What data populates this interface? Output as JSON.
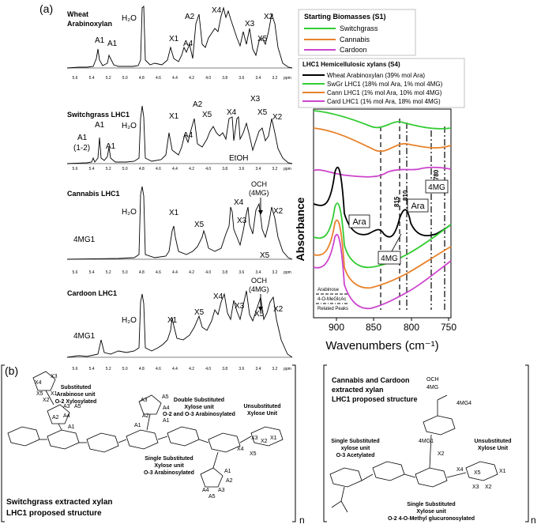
{
  "panel_a": {
    "label": "(a)",
    "nmr": {
      "ppm_unit": "ppm",
      "ticks": [
        "5.6",
        "5.4",
        "5.2",
        "5.0",
        "4.8",
        "4.6",
        "4.4",
        "4.2",
        "4.0",
        "3.8",
        "3.6",
        "3.4",
        "3.2"
      ],
      "spectra": [
        {
          "title_line1": "Wheat",
          "title_line2": "Arabinoxylan",
          "labels": [
            "A1",
            "A1",
            "H₂O",
            "X1",
            "A4",
            "A2",
            "X4",
            "X3",
            "X5",
            "X2"
          ]
        },
        {
          "title_line1": "Switchgrass LHC1",
          "title_line2": "",
          "labels": [
            "A1",
            "A1",
            "(1-2)",
            "A1",
            "H₂O",
            "X1",
            "A4",
            "A2",
            "X5",
            "X4",
            "X3",
            "X5",
            "X2",
            "EtOH"
          ]
        },
        {
          "title_line1": "Cannabis LHC1",
          "title_line2": "",
          "labels": [
            "H₂O",
            "X1",
            "X5",
            "X4",
            "OCH",
            "(4MG)",
            "X3",
            "X2",
            "X5",
            "4MG1"
          ]
        },
        {
          "title_line1": "Cardoon LHC1",
          "title_line2": "",
          "labels": [
            "H₂O",
            "X1",
            "X5",
            "X4",
            "X3",
            "OCH",
            "(4MG)",
            "X5",
            "X2",
            "4MG1"
          ]
        }
      ]
    },
    "ftir": {
      "legend_s1_title": "Starting Biomasses (S1)",
      "legend_s1": [
        {
          "label": "Switchgrass",
          "color": "#33cc33"
        },
        {
          "label": "Cannabis",
          "color": "#e8822a"
        },
        {
          "label": "Cardoon",
          "color": "#cc44cc"
        }
      ],
      "legend_s4_title": "LHC1 Hemicellulosic xylans (S4)",
      "legend_s4": [
        {
          "label": "Wheat Arabinoxylan (39% mol Ara)",
          "color": "#000000"
        },
        {
          "label": "SwGr LHC1 (18% mol Ara, 1% mol 4MG)",
          "color": "#33cc33"
        },
        {
          "label": "Cann LHC1 (1% mol Ara, 10% mol 4MG)",
          "color": "#e8822a"
        },
        {
          "label": "Card LHC1 (1% mol Ara, 18% mol 4MG)",
          "color": "#cc44cc"
        }
      ],
      "ylabel": "Absorbance",
      "xlabel": "Wavenumbers (cm⁻¹)",
      "x_ticks": [
        "900",
        "850",
        "800",
        "750"
      ],
      "peak_labels": {
        "p815": "815",
        "p810": "810",
        "p780": "780"
      },
      "box_labels": {
        "ara1": "Ara",
        "ara2": "Ara",
        "mg1": "4MG",
        "mg2": "4MG"
      },
      "key_arabinose": "Arabinose",
      "key_4omg": "4-O-MeGlcAc",
      "key_related": "Related Peaks"
    }
  },
  "panel_b": {
    "label": "(b)",
    "left": {
      "title_line1": "Switchgrass extracted xylan",
      "title_line2": "LHC1 proposed structure",
      "annotations": {
        "sub_ara_1": "Substituted",
        "sub_ara_2": "Arabinose unit",
        "sub_ara_3": "O-2 Xylosylated",
        "double_1": "Double Substituted",
        "double_2": "Xylose unit",
        "double_3": "O-2 and O-3 Arabinosylated",
        "unsub_1": "Unsubstituted",
        "unsub_2": "Xylose Unit",
        "single_1": "Single Substituted",
        "single_2": "Xylose unit",
        "single_3": "O-3 Arabinosylated"
      },
      "ring_labels": [
        "X3",
        "X4",
        "X5",
        "X1",
        "X2",
        "A3",
        "A5",
        "A4",
        "A2",
        "A1",
        "A1",
        "A5",
        "A3",
        "A4",
        "A2",
        "A1",
        "X2",
        "X3",
        "X4",
        "X5",
        "X1",
        "A1",
        "A2",
        "A4",
        "A5",
        "A3"
      ]
    },
    "right": {
      "title_line1": "Cannabis and Cardoon",
      "title_line2": "extracted xylan",
      "title_line3": "LHC1 proposed structure",
      "annotations": {
        "single_a_1": "Single Substituted",
        "single_a_2": "xylose unit",
        "single_a_3": "O-3 Acetylated",
        "unsub_1": "Unsubstituted",
        "unsub_2": "Xylose Unit",
        "single_b_1": "Single Substituted",
        "single_b_2": "Xylose unit",
        "single_b_3": "O-2 4-O-Methyl glucuronosylated"
      },
      "ring_labels": [
        "OCH",
        "4MG",
        "4MG4",
        "4MG1",
        "X2",
        "X4",
        "X5",
        "X3",
        "X2",
        "X1"
      ]
    },
    "repeat_n": "n"
  }
}
